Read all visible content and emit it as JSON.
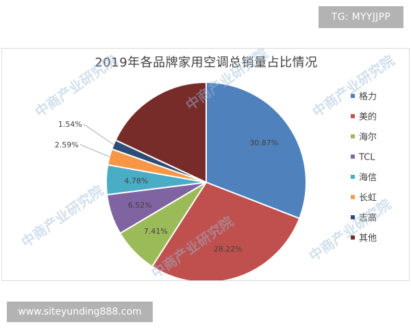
{
  "tg_badge": "TG: MYYJJPP",
  "site_badge": "www.siteyunding888.com",
  "watermark_text": "中商产业研究院",
  "chart_data": {
    "type": "pie",
    "title": "2019年各品牌家用空调总销量占比情况",
    "labels": [
      "格力",
      "美的",
      "海尔",
      "TCL",
      "海信",
      "长虹",
      "志高",
      "其他"
    ],
    "values": [
      30.87,
      28.22,
      7.41,
      6.52,
      4.78,
      2.59,
      1.54,
      18.07
    ],
    "data_labels": [
      "30.87%",
      "28.22%",
      "7.41%",
      "6.52%",
      "4.78%",
      "2.59%",
      "1.54%",
      ""
    ],
    "legend_labels": [
      "格力",
      "美的",
      "海尔",
      "TCL",
      "海信",
      "长虹",
      "志高",
      "其他"
    ],
    "colors": [
      "#4f81bd",
      "#c0504d",
      "#9bbb59",
      "#8064a2",
      "#4bacc6",
      "#f79646",
      "#2c4d75",
      "#772c2a"
    ],
    "legend_position": "right"
  }
}
